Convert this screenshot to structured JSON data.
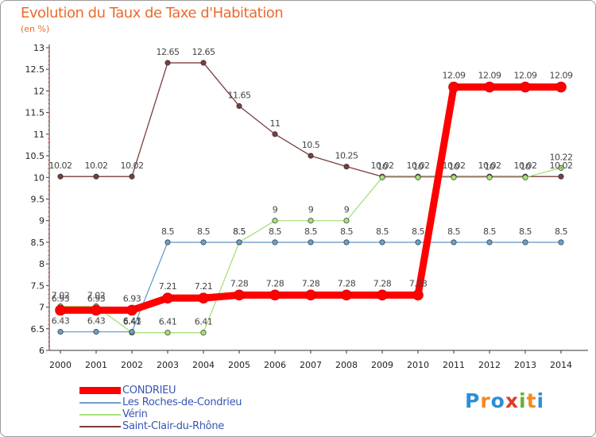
{
  "title": "Evolution du Taux de Taxe d'Habitation",
  "subtitle": "(en %)",
  "logo": {
    "letters": [
      "P",
      "r",
      "o",
      "x",
      "i",
      "t",
      "i"
    ],
    "colors": [
      "#2b8fd6",
      "#f08a1c",
      "#2b8fd6",
      "#e23b2b",
      "#64b22e",
      "#f08a1c",
      "#2b8fd6"
    ]
  },
  "chart_data": {
    "type": "line",
    "x": [
      2000,
      2001,
      2002,
      2003,
      2004,
      2005,
      2006,
      2007,
      2008,
      2009,
      2010,
      2011,
      2012,
      2013,
      2014
    ],
    "x_tick_labels": [
      "2000",
      "2001",
      "2002",
      "2003",
      "2004",
      "2005",
      "2006",
      "2007",
      "2008",
      "2009",
      "2010",
      "2011",
      "2012",
      "2013",
      "2014"
    ],
    "ylim": [
      6,
      13
    ],
    "y_ticks": [
      6,
      6.5,
      7,
      7.5,
      8,
      8.5,
      9,
      9.5,
      10,
      10.5,
      11,
      11.5,
      12,
      12.5,
      13
    ],
    "y_tick_labels": [
      "6",
      "6.5",
      "7",
      "7.5",
      "8",
      "8.5",
      "9",
      "9.5",
      "10",
      "10.5",
      "11",
      "11.5",
      "12",
      "12.5",
      "13"
    ],
    "grid": false,
    "legend_position": "bottom-left",
    "series": [
      {
        "name": "CONDRIEU",
        "color": "#ff0000",
        "values": [
          6.93,
          6.93,
          6.93,
          7.21,
          7.21,
          7.28,
          7.28,
          7.28,
          7.28,
          7.28,
          7.28,
          12.09,
          12.09,
          12.09,
          12.09
        ],
        "labels": [
          "6.93",
          "6.93",
          "6.93",
          "7.21",
          "7.21",
          "7.28",
          "7.28",
          "7.28",
          "7.28",
          "7.28",
          "7.28",
          "12.09",
          "12.09",
          "12.09",
          "12.09"
        ]
      },
      {
        "name": "Les Roches-de-Condrieu",
        "color": "#6a9fcc",
        "values": [
          6.43,
          6.43,
          6.43,
          8.5,
          8.5,
          8.5,
          8.5,
          8.5,
          8.5,
          8.5,
          8.5,
          8.5,
          8.5,
          8.5,
          8.5
        ],
        "labels": [
          "6.43",
          "6.43",
          "6.43",
          "8.5",
          "8.5",
          "8.5",
          "8.5",
          "8.5",
          "8.5",
          "8.5",
          "8.5",
          "8.5",
          "8.5",
          "8.5",
          "8.5"
        ]
      },
      {
        "name": "Vérin",
        "color": "#a6e07c",
        "values": [
          7.02,
          7.02,
          6.41,
          6.41,
          6.41,
          8.5,
          9,
          9,
          9,
          10,
          10,
          10,
          10,
          10,
          10.22
        ],
        "labels": [
          "7.02",
          "7.02",
          "6.41",
          "6.41",
          "6.41",
          "8.5",
          "9",
          "9",
          "9",
          "10",
          "10",
          "10",
          "10",
          "10",
          "10.22"
        ]
      },
      {
        "name": "Saint-Clair-du-Rhône",
        "color": "#7a3d3d",
        "values": [
          10.02,
          10.02,
          10.02,
          12.65,
          12.65,
          11.65,
          11,
          10.5,
          10.25,
          10.02,
          10.02,
          10.02,
          10.02,
          10.02,
          10.02
        ],
        "labels": [
          "10.02",
          "10.02",
          "10.02",
          "12.65",
          "12.65",
          "11.65",
          "11",
          "10.5",
          "10.25",
          "10.02",
          "10.02",
          "10.02",
          "10.02",
          "10.02",
          "10.02"
        ]
      }
    ]
  }
}
